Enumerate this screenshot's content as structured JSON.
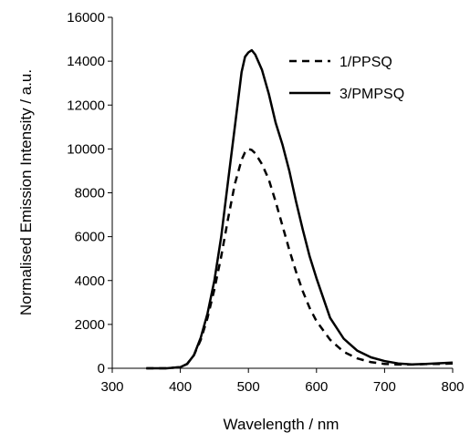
{
  "chart_data": {
    "type": "line",
    "title": "",
    "xlabel": "Wavelength / nm",
    "ylabel": "Normalised Emission Intensity / a.u.",
    "xlim": [
      300,
      800
    ],
    "ylim": [
      0,
      16000
    ],
    "xticks": [
      300,
      400,
      500,
      600,
      700,
      800
    ],
    "yticks": [
      0,
      2000,
      4000,
      6000,
      8000,
      10000,
      12000,
      14000,
      16000
    ],
    "grid": false,
    "legend": "top-right",
    "series": [
      {
        "name": "1/PPSQ",
        "style": "dashed",
        "color": "#000000",
        "x": [
          350,
          380,
          400,
          410,
          420,
          430,
          440,
          450,
          460,
          470,
          480,
          490,
          495,
          500,
          505,
          510,
          520,
          530,
          540,
          550,
          560,
          570,
          580,
          590,
          600,
          620,
          640,
          660,
          680,
          700,
          720,
          740,
          760,
          780,
          800
        ],
        "y": [
          0,
          0,
          50,
          200,
          600,
          1300,
          2300,
          3600,
          5100,
          6800,
          8400,
          9500,
          9850,
          10000,
          9950,
          9800,
          9300,
          8600,
          7600,
          6500,
          5400,
          4400,
          3500,
          2750,
          2150,
          1300,
          750,
          450,
          280,
          200,
          170,
          170,
          190,
          200,
          220
        ]
      },
      {
        "name": "3/PMPSQ",
        "style": "solid",
        "color": "#000000",
        "x": [
          350,
          380,
          400,
          410,
          420,
          430,
          440,
          450,
          460,
          470,
          480,
          490,
          495,
          500,
          505,
          510,
          520,
          530,
          540,
          550,
          560,
          570,
          580,
          590,
          600,
          620,
          640,
          660,
          680,
          700,
          720,
          740,
          760,
          780,
          800
        ],
        "y": [
          0,
          0,
          50,
          200,
          600,
          1400,
          2500,
          4000,
          6000,
          8500,
          11000,
          13500,
          14200,
          14400,
          14500,
          14300,
          13600,
          12500,
          11200,
          10200,
          9000,
          7600,
          6300,
          5100,
          4100,
          2300,
          1350,
          800,
          500,
          330,
          220,
          180,
          200,
          230,
          260
        ]
      }
    ]
  }
}
